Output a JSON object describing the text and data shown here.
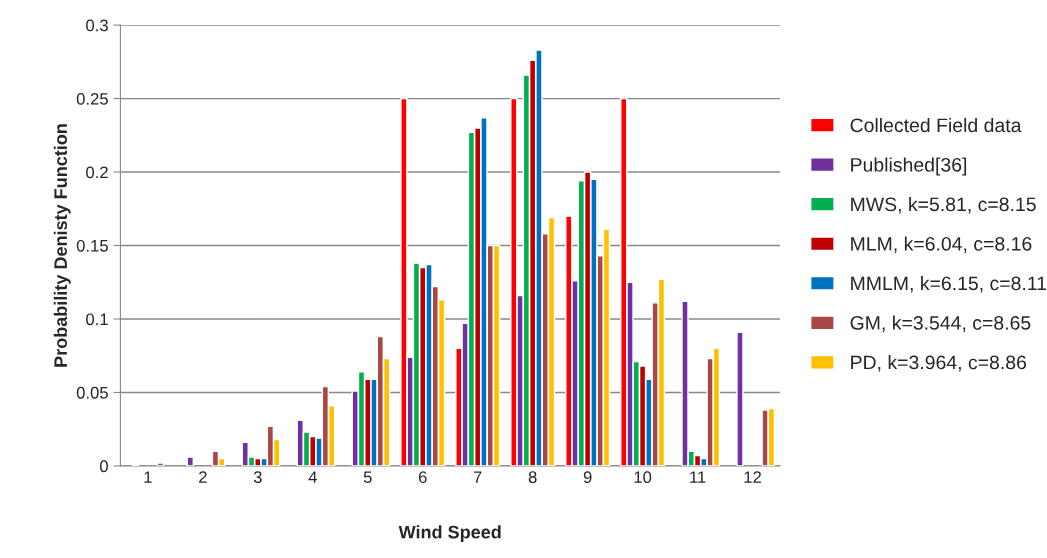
{
  "chart_data": {
    "type": "bar",
    "xlabel": "Wind Speed",
    "ylabel": "Probability Denisty Function",
    "categories": [
      "1",
      "2",
      "3",
      "4",
      "5",
      "6",
      "7",
      "8",
      "9",
      "10",
      "11",
      "12"
    ],
    "series": [
      {
        "name": "Collected Field data",
        "color": "#ff0000",
        "values": [
          null,
          null,
          null,
          null,
          null,
          0.25,
          0.08,
          0.25,
          0.17,
          0.25,
          null,
          null
        ]
      },
      {
        "name": "Published[36]",
        "color": "#7030a0",
        "values": [
          0.001,
          0.006,
          0.016,
          0.031,
          0.051,
          0.074,
          0.097,
          0.116,
          0.126,
          0.125,
          0.112,
          0.091
        ]
      },
      {
        "name": "MWS, k=5.81, c=8.15",
        "color": "#00b050",
        "values": [
          null,
          null,
          0.006,
          0.023,
          0.064,
          0.138,
          0.227,
          0.266,
          0.194,
          0.071,
          0.01,
          null
        ]
      },
      {
        "name": "MLM, k=6.04, c=8.16",
        "color": "#c00000",
        "values": [
          null,
          null,
          0.005,
          0.02,
          0.059,
          0.135,
          0.23,
          0.276,
          0.2,
          0.068,
          0.007,
          null
        ]
      },
      {
        "name": "MMLM, k=6.15, c=8.11",
        "color": "#0070c0",
        "values": [
          null,
          null,
          0.005,
          0.019,
          0.059,
          0.137,
          0.237,
          0.283,
          0.195,
          0.059,
          0.005,
          null
        ]
      },
      {
        "name": "GM, k=3.544, c=8.65",
        "color": "#aa4643",
        "values": [
          0.002,
          0.01,
          0.027,
          0.054,
          0.088,
          0.122,
          0.15,
          0.158,
          0.143,
          0.111,
          0.073,
          0.038
        ]
      },
      {
        "name": "PD, k=3.964, c=8.86",
        "color": "#ffc000",
        "values": [
          null,
          0.005,
          0.018,
          0.041,
          0.073,
          0.113,
          0.15,
          0.169,
          0.161,
          0.127,
          0.08,
          0.039
        ]
      }
    ],
    "ylim": [
      0,
      0.3
    ],
    "yticks": [
      {
        "value": 0,
        "label": "0"
      },
      0.05,
      0.1,
      0.15,
      0.2,
      0.25,
      0.3
    ],
    "grid": "y",
    "legend": "right"
  }
}
